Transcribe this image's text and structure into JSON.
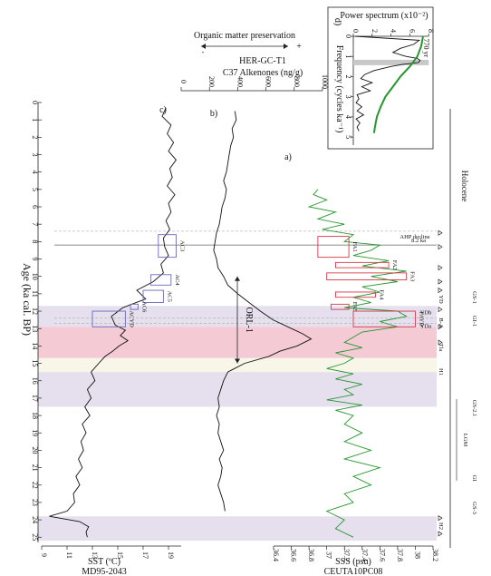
{
  "figure": {
    "age_axis": {
      "label": "Age (ka cal. BP)",
      "ticks": [
        0,
        1,
        2,
        3,
        4,
        5,
        6,
        7,
        8,
        9,
        10,
        11,
        12,
        13,
        14,
        15,
        16,
        17,
        18,
        19,
        20,
        21,
        22,
        23,
        24,
        25
      ],
      "range": [
        0,
        26
      ]
    },
    "shaded_intervals": [
      {
        "name": "YD",
        "from": 11.7,
        "to": 12.9,
        "color": "#e6e0ee"
      },
      {
        "name": "B-A",
        "from": 12.9,
        "to": 14.7,
        "color": "#f4cbd4"
      },
      {
        "name": "Tla",
        "from": 14.7,
        "to": 15.5,
        "color": "#f7f6e9"
      },
      {
        "name": "H1",
        "from": 15.5,
        "to": 17.5,
        "color": "#e6e0ee"
      },
      {
        "name": "H2",
        "from": 23.8,
        "to": 25.2,
        "color": "#e6e0ee"
      }
    ],
    "lines": {
      "ahp_decline": {
        "age": 7.4,
        "label": "AHP decline",
        "style": "dashed"
      },
      "event_82": {
        "age": 8.2,
        "label": "8.2 ka",
        "style": "solid"
      },
      "ydb": {
        "age": 12.4,
        "label": "YDb",
        "style": "dashed"
      },
      "yda": {
        "age": 12.7,
        "label": "YDa",
        "style": "dashed"
      }
    },
    "right_labels": {
      "holocene": "Holocene",
      "gs1": "GS-1",
      "gi1": "GI-1",
      "gs21": "GS-2.1",
      "lgm": "LGM",
      "gi": "GI",
      "gs3": "GS-3",
      "yd": "YD",
      "ba": "B-A",
      "tla": "Tla",
      "h1": "H1",
      "h2": "H2"
    },
    "markers_ages": [
      7.5,
      8.3,
      9.5,
      10.3,
      10.8,
      11.9,
      12.9,
      13.8,
      23.9,
      24.8
    ]
  },
  "chart_data": [
    {
      "type": "line",
      "id": "a",
      "panel_label": "a)",
      "xlabel": "SSS (psu)",
      "xlabel2": "CEUTA10PC08",
      "xlim": [
        36.4,
        38.2
      ],
      "xticks": [
        "36.4",
        "36.6",
        "36.8",
        "37",
        "37.2",
        "37.4",
        "37.6",
        "37.8",
        "38",
        "38.2"
      ],
      "color": "#27962f",
      "x_age": [
        5.0,
        5.3,
        5.6,
        6.0,
        6.3,
        6.7,
        7.0,
        7.3,
        7.6,
        8.0,
        8.2,
        8.5,
        8.8,
        9.1,
        9.4,
        9.7,
        10.0,
        10.3,
        10.6,
        10.9,
        11.2,
        11.5,
        11.8,
        12.0,
        12.3,
        12.6,
        12.9,
        13.2,
        13.5,
        13.8,
        14.1,
        14.4,
        14.7,
        15.0,
        15.3,
        15.6,
        15.9,
        16.2,
        16.5,
        16.8,
        17.1,
        17.4,
        17.7,
        18.0,
        18.5,
        19.0,
        19.5,
        20.0,
        20.5,
        21.0,
        21.5,
        22.0,
        22.5,
        23.0,
        23.5,
        24.0,
        24.5,
        25.0
      ],
      "values": [
        36.9,
        36.85,
        37.0,
        36.8,
        37.1,
        36.9,
        37.2,
        36.95,
        37.3,
        37.2,
        37.6,
        37.5,
        37.3,
        37.7,
        37.4,
        37.9,
        37.5,
        37.8,
        37.4,
        37.6,
        37.3,
        37.5,
        37.2,
        37.8,
        37.9,
        37.6,
        37.8,
        37.4,
        37.3,
        37.2,
        37.4,
        37.1,
        37.3,
        37.2,
        37.0,
        37.3,
        37.1,
        37.4,
        37.2,
        37.3,
        37.0,
        37.4,
        37.1,
        37.3,
        37.2,
        37.4,
        37.2,
        37.5,
        37.2,
        37.6,
        37.3,
        37.5,
        37.2,
        37.3,
        37.0,
        37.2,
        37.1,
        37.3
      ],
      "boxes": [
        {
          "label": "FA1",
          "age_from": 7.7,
          "age_to": 8.9,
          "x_from": 36.9,
          "x_to": 37.25
        },
        {
          "label": "FA2",
          "age_from": 9.2,
          "age_to": 9.5,
          "x_from": 37.1,
          "x_to": 37.7
        },
        {
          "label": "FA3",
          "age_from": 9.8,
          "age_to": 10.2,
          "x_from": 37.0,
          "x_to": 37.9
        },
        {
          "label": "FA4",
          "age_from": 10.9,
          "age_to": 11.2,
          "x_from": 37.1,
          "x_to": 37.55
        },
        {
          "label": "FA5",
          "age_from": 11.6,
          "age_to": 11.9,
          "x_from": 37.05,
          "x_to": 37.25
        },
        {
          "label": "FAYD",
          "age_from": 12.0,
          "age_to": 12.9,
          "x_from": 37.3,
          "x_to": 38.0
        }
      ]
    },
    {
      "type": "line",
      "id": "b",
      "panel_label": "b)",
      "title": "Organic matter preservation",
      "title_minus": "-",
      "title_plus": "+",
      "xlabel": "HER-GC-T1",
      "xlabel2": "C37 Alkenones (ng/g)",
      "xlim": [
        0,
        1000
      ],
      "xticks": [
        "0",
        "200",
        "400",
        "600",
        "800",
        "1000"
      ],
      "color": "#111111",
      "annotation": "ORL-1",
      "annotation_range": [
        10.0,
        15.0
      ],
      "x_age": [
        0.5,
        1.0,
        1.5,
        2.0,
        2.5,
        3.0,
        3.5,
        4.0,
        4.5,
        5.0,
        5.5,
        6.0,
        6.5,
        7.0,
        7.5,
        8.0,
        8.5,
        9.0,
        9.5,
        10.0,
        10.5,
        11.0,
        11.5,
        12.0,
        12.5,
        13.0,
        13.3,
        13.6,
        14.0,
        14.3,
        14.6,
        15.0,
        15.5,
        16.0,
        16.5,
        17.0,
        17.5,
        18.0,
        18.5,
        19.0,
        19.5,
        20.0,
        20.5,
        21.0,
        21.5,
        22.0,
        22.5,
        23.0,
        23.5
      ],
      "values": [
        380,
        390,
        360,
        370,
        350,
        340,
        330,
        320,
        300,
        320,
        310,
        290,
        280,
        270,
        250,
        240,
        230,
        250,
        260,
        300,
        330,
        400,
        480,
        560,
        650,
        780,
        860,
        920,
        820,
        700,
        620,
        450,
        330,
        300,
        280,
        260,
        270,
        250,
        270,
        260,
        280,
        300,
        270,
        290,
        280,
        260,
        280,
        300,
        310
      ]
    },
    {
      "type": "line",
      "id": "c",
      "panel_label": "c)",
      "xlabel": "SST (ºC)",
      "xlabel2": "MD95-2043",
      "xlim": [
        9,
        20
      ],
      "xticks": [
        "9",
        "11",
        "13",
        "15",
        "17",
        "19"
      ],
      "color": "#111111",
      "x_age": [
        0.3,
        0.8,
        1.3,
        1.8,
        2.3,
        2.8,
        3.3,
        3.8,
        4.3,
        4.8,
        5.3,
        5.8,
        6.3,
        6.8,
        7.3,
        7.8,
        8.3,
        8.8,
        9.3,
        9.8,
        10.3,
        10.8,
        11.3,
        11.8,
        12.3,
        12.8,
        13.1,
        13.4,
        13.7,
        14.0,
        14.3,
        14.6,
        15.0,
        15.5,
        16.0,
        16.5,
        17.0,
        17.5,
        18.0,
        18.5,
        19.0,
        19.5,
        20.0,
        20.5,
        21.0,
        21.5,
        22.0,
        22.5,
        23.0,
        23.5,
        23.8,
        24.1,
        24.4,
        24.7,
        25.0
      ],
      "values": [
        18.8,
        18.5,
        19.2,
        18.9,
        19.4,
        19.0,
        19.6,
        19.1,
        19.3,
        18.9,
        19.5,
        19.0,
        19.2,
        18.8,
        19.1,
        18.6,
        18.7,
        19.0,
        18.4,
        18.6,
        17.8,
        16.5,
        17.2,
        15.4,
        14.5,
        14.8,
        15.6,
        15.2,
        15.8,
        15.1,
        14.6,
        14.0,
        13.5,
        12.9,
        13.2,
        12.6,
        12.9,
        12.4,
        12.8,
        12.2,
        12.5,
        12.1,
        12.3,
        11.9,
        12.2,
        11.7,
        12.0,
        11.5,
        11.6,
        11.0,
        9.6,
        12.0,
        12.7,
        12.5,
        12.6
      ],
      "boxes": [
        {
          "label": "AC3",
          "age_from": 7.6,
          "age_to": 8.9,
          "x_from": 18.2,
          "x_to": 19.6
        },
        {
          "label": "AC4",
          "age_from": 9.9,
          "age_to": 10.5,
          "x_from": 17.6,
          "x_to": 19.2
        },
        {
          "label": "AC5",
          "age_from": 10.8,
          "age_to": 11.5,
          "x_from": 17.0,
          "x_to": 18.6
        },
        {
          "label": "AC6",
          "age_from": 11.6,
          "age_to": 11.9,
          "x_from": 16.0,
          "x_to": 16.6
        },
        {
          "label": "ACYD",
          "age_from": 12.0,
          "age_to": 12.9,
          "x_from": 13.0,
          "x_to": 15.6
        }
      ]
    },
    {
      "type": "line",
      "id": "d",
      "panel_label": "d)",
      "title": "Power spectrum (x10⁻²)",
      "ylabel": "Frequency (cycles ka⁻¹)",
      "xticks": [
        "0",
        "2",
        "4",
        "6",
        "8"
      ],
      "yticks": [
        "0",
        "1",
        "2",
        "3",
        "4",
        "5"
      ],
      "xlim": [
        0,
        8
      ],
      "ylim": [
        0,
        5.4
      ],
      "peak_label": "770 yr",
      "peak_freq": 1.3,
      "spectrum_freq": [
        0,
        0.2,
        0.4,
        0.6,
        0.8,
        1.0,
        1.1,
        1.2,
        1.3,
        1.4,
        1.5,
        1.7,
        1.9,
        2.1,
        2.3,
        2.5,
        2.7,
        2.9,
        3.1,
        3.3,
        3.5,
        3.7,
        3.9,
        4.1,
        4.3,
        4.5,
        4.7
      ],
      "spectrum_power": [
        0.2,
        7.0,
        6.4,
        5.0,
        4.2,
        5.6,
        6.8,
        7.1,
        6.9,
        5.2,
        4.0,
        2.2,
        1.2,
        0.8,
        2.0,
        0.9,
        1.8,
        0.4,
        0.6,
        0.3,
        0.9,
        0.4,
        1.1,
        0.3,
        0.7,
        0.4,
        0.6
      ],
      "confidence_freq": [
        0,
        0.5,
        1.0,
        1.5,
        2.0,
        2.5,
        3.0,
        3.5,
        4.0,
        4.5,
        4.8
      ],
      "confidence_power": [
        7.4,
        7.2,
        6.8,
        6.0,
        5.0,
        4.2,
        3.4,
        2.9,
        2.5,
        2.3,
        2.2
      ],
      "confidence_color": "#27962f"
    }
  ]
}
